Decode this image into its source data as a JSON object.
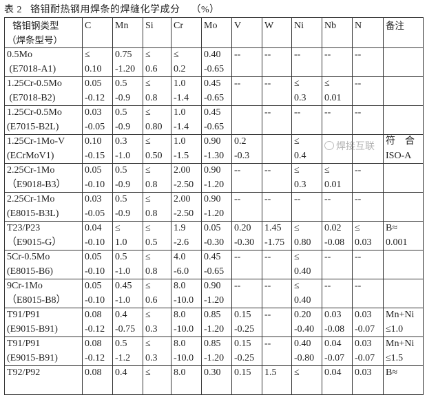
{
  "title": "表 2   铬钼耐热钢用焊条的焊缝化学成分    （%）",
  "headers": [
    "铬钼钢类型\n（焊条型号）",
    "C",
    "Mn",
    "Si",
    "Cr",
    "Mo",
    "V",
    "W",
    "Ni",
    "Nb",
    "N",
    "备注"
  ],
  "header_type": [
    "铬钼钢类型",
    "（焊条型号）"
  ],
  "rows": [
    {
      "type": [
        "0.5Mo",
        " (E7018-A1)"
      ],
      "C": [
        "≤",
        "0.10"
      ],
      "Mn": [
        "0.75",
        "-1.20"
      ],
      "Si": [
        "≤",
        "0.6"
      ],
      "Cr": [
        "≤",
        "0.2"
      ],
      "Mo": [
        "0.40",
        "-0.65"
      ],
      "V": [
        "--",
        ""
      ],
      "W": [
        "--",
        ""
      ],
      "Ni": [
        "--",
        ""
      ],
      "Nb": [
        "--",
        ""
      ],
      "N": [
        "--",
        ""
      ],
      "note": [
        "",
        ""
      ]
    },
    {
      "type": [
        "1.25Cr-0.5Mo",
        " (E7018-B2)"
      ],
      "C": [
        "0.05",
        "-0.12"
      ],
      "Mn": [
        "0.5",
        "-0.9"
      ],
      "Si": [
        "≤",
        "0.8"
      ],
      "Cr": [
        "1.0",
        "-1.4"
      ],
      "Mo": [
        "0.45",
        "-0.65"
      ],
      "V": [
        "--",
        ""
      ],
      "W": [
        "--",
        ""
      ],
      "Ni": [
        "≤",
        "0.3"
      ],
      "Nb": [
        "≤",
        "0.01"
      ],
      "N": [
        "--",
        ""
      ],
      "note": [
        "",
        ""
      ]
    },
    {
      "type": [
        "1.25Cr-0.5Mo",
        "(E7015-B2L)"
      ],
      "C": [
        "0.03",
        "-0.05"
      ],
      "Mn": [
        "0.5",
        "-0.9"
      ],
      "Si": [
        "≤",
        "0.80"
      ],
      "Cr": [
        "1.0",
        "-1.4"
      ],
      "Mo": [
        "0.45",
        "-0.65"
      ],
      "V": [
        "",
        ""
      ],
      "W": [
        "--",
        ""
      ],
      "Ni": [
        "--",
        ""
      ],
      "Nb": [
        "--",
        ""
      ],
      "N": [
        "--",
        ""
      ],
      "note": [
        "",
        ""
      ]
    },
    {
      "type": [
        "1.25Cr-1Mo-V",
        "(ECrMoV1)"
      ],
      "C": [
        "0.10",
        "-0.15"
      ],
      "Mn": [
        "0.3",
        "-1.0"
      ],
      "Si": [
        "≤",
        "0.50"
      ],
      "Cr": [
        "1.0",
        "-1.5"
      ],
      "Mo": [
        "0.90",
        "-1.30"
      ],
      "V": [
        "0.2",
        "-0.3"
      ],
      "W": [
        "",
        ""
      ],
      "Ni": [
        "≤",
        "0.4"
      ],
      "Nb": [
        "",
        ""
      ],
      "N": [
        "",
        ""
      ],
      "note": [
        "符　合",
        "ISO-A"
      ]
    },
    {
      "type": [
        "2.25Cr-1Mo",
        "（E9018-B3）"
      ],
      "C": [
        "0.05",
        "-0.10"
      ],
      "Mn": [
        "0.5",
        "-0.9"
      ],
      "Si": [
        "≤",
        "0.8"
      ],
      "Cr": [
        "2.00",
        "-2.50"
      ],
      "Mo": [
        "0.90",
        "-1.20"
      ],
      "V": [
        "--",
        ""
      ],
      "W": [
        "--",
        ""
      ],
      "Ni": [
        "≤",
        "0.3"
      ],
      "Nb": [
        "≤",
        "0.01"
      ],
      "N": [
        "--",
        ""
      ],
      "note": [
        "",
        ""
      ]
    },
    {
      "type": [
        "2.25Cr-1Mo",
        "(E8015-B3L)"
      ],
      "C": [
        "0.03",
        "-0.05"
      ],
      "Mn": [
        "0.5",
        "-0.9"
      ],
      "Si": [
        "≤",
        "0.8"
      ],
      "Cr": [
        "2.00",
        "-2.50"
      ],
      "Mo": [
        "0.90",
        "-1.20"
      ],
      "V": [
        "--",
        ""
      ],
      "W": [
        "--",
        ""
      ],
      "Ni": [
        "--",
        ""
      ],
      "Nb": [
        "--",
        ""
      ],
      "N": [
        "--",
        ""
      ],
      "note": [
        "",
        ""
      ]
    },
    {
      "type": [
        "T23/P23",
        "（E9015-G）"
      ],
      "C": [
        "0.04",
        "-0.10"
      ],
      "Mn": [
        "≤",
        "1.0"
      ],
      "Si": [
        "≤",
        "0.5"
      ],
      "Cr": [
        "1.9",
        "-2.6"
      ],
      "Mo": [
        "0.05",
        "-0.30"
      ],
      "V": [
        "0.20",
        "-0.30"
      ],
      "W": [
        "1.45",
        "-1.75"
      ],
      "Ni": [
        "≤",
        "0.80"
      ],
      "Nb": [
        "0.02",
        "-0.08"
      ],
      "N": [
        "≤",
        "0.03"
      ],
      "note": [
        "B≈",
        "0.001"
      ]
    },
    {
      "type": [
        "5Cr-0.5Mo",
        "(E8015-B6)"
      ],
      "C": [
        "0.05",
        "-0.10"
      ],
      "Mn": [
        "0.5",
        "-1.0"
      ],
      "Si": [
        "≤",
        "0.8"
      ],
      "Cr": [
        "4.0",
        "-6.0"
      ],
      "Mo": [
        "0.45",
        "-0.65"
      ],
      "V": [
        "--",
        ""
      ],
      "W": [
        "--",
        ""
      ],
      "Ni": [
        "≤",
        "0.40"
      ],
      "Nb": [
        "--",
        ""
      ],
      "N": [
        "--",
        ""
      ],
      "note": [
        "",
        ""
      ]
    },
    {
      "type": [
        "9Cr-1Mo",
        "（E8015-B8）"
      ],
      "C": [
        "0.05",
        "-0.10"
      ],
      "Mn": [
        "0.45",
        "-1.0"
      ],
      "Si": [
        "≤",
        "0.6"
      ],
      "Cr": [
        "8.0",
        "-10.0"
      ],
      "Mo": [
        "0.90",
        "-1.20"
      ],
      "V": [
        "--",
        ""
      ],
      "W": [
        "--",
        ""
      ],
      "Ni": [
        "≤",
        "0.40"
      ],
      "Nb": [
        "--",
        ""
      ],
      "N": [
        "--",
        ""
      ],
      "note": [
        "",
        ""
      ]
    },
    {
      "type": [
        "T91/P91",
        "(E9015-B91)"
      ],
      "C": [
        "0.08",
        "-0.12"
      ],
      "Mn": [
        "0.4",
        "-0.75"
      ],
      "Si": [
        "≤",
        "0.3"
      ],
      "Cr": [
        "8.0",
        "-10.0"
      ],
      "Mo": [
        "0.85",
        "-1.20"
      ],
      "V": [
        "0.15",
        "-0.25"
      ],
      "W": [
        "--",
        ""
      ],
      "Ni": [
        "0.20",
        "-0.40"
      ],
      "Nb": [
        "0.03",
        "-0.08"
      ],
      "N": [
        "0.03",
        "-0.07"
      ],
      "note": [
        "Mn+Ni",
        "≤1.0"
      ]
    },
    {
      "type": [
        "T91/P91",
        "(E9015-B91)"
      ],
      "C": [
        "0.08",
        "-0.12"
      ],
      "Mn": [
        "0.5",
        "-1.2"
      ],
      "Si": [
        "≤",
        "0.3"
      ],
      "Cr": [
        "8.0",
        "-10.0"
      ],
      "Mo": [
        "0.85",
        "-1.20"
      ],
      "V": [
        "0.15",
        "-0.25"
      ],
      "W": [
        "--",
        ""
      ],
      "Ni": [
        "0.40",
        "-0.80"
      ],
      "Nb": [
        "0.04",
        "-0.07"
      ],
      "N": [
        "0.03",
        "-0.07"
      ],
      "note": [
        "Mn+Ni",
        "≤1.5"
      ]
    },
    {
      "type": [
        "T92/P92",
        ""
      ],
      "C": [
        "0.08",
        ""
      ],
      "Mn": [
        "0.4",
        ""
      ],
      "Si": [
        "≤",
        ""
      ],
      "Cr": [
        "8.0",
        ""
      ],
      "Mo": [
        "0.30",
        ""
      ],
      "V": [
        "0.15",
        ""
      ],
      "W": [
        "1.5",
        ""
      ],
      "Ni": [
        "≤",
        ""
      ],
      "Nb": [
        "0.04",
        ""
      ],
      "N": [
        "0.03",
        ""
      ],
      "note": [
        "B≈",
        ""
      ]
    }
  ],
  "watermark": "焊接互联"
}
